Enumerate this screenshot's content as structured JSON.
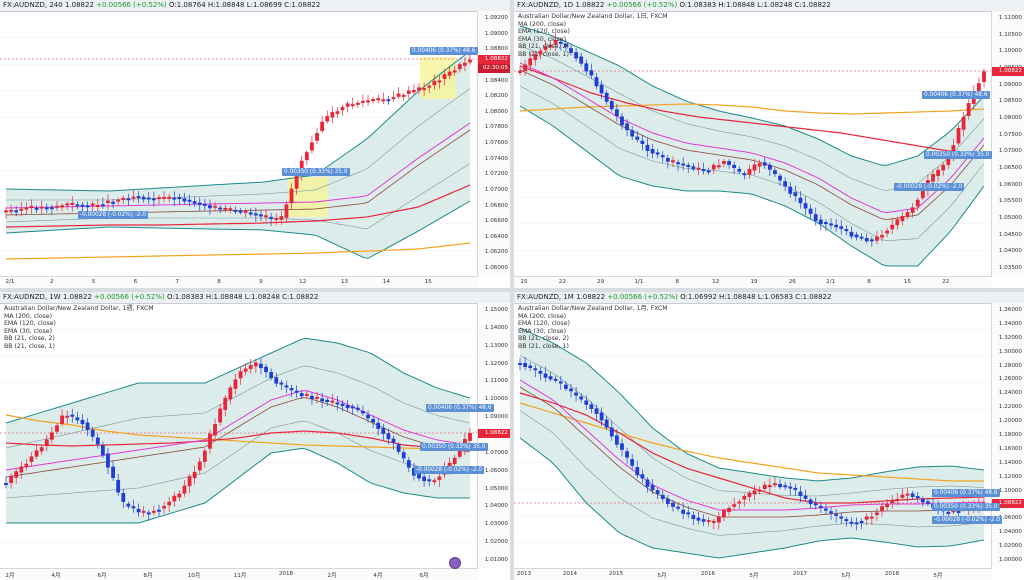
{
  "colors": {
    "up": "#e8263a",
    "down": "#1e3ed6",
    "ma200": "#f4a11d",
    "ema120": "#e8263a",
    "ema30": "#8b4a3a",
    "bb2": "#1e8b8b",
    "bb1": "#e23ad7",
    "fill": "#dcecea",
    "highlight": "#f8f59a",
    "price_label": "#e8263a"
  },
  "panels": [
    {
      "id": "h4",
      "title": {
        "symbol": "FX:AUDNZD, 240",
        "last": "1.08822",
        "change": "+0.00566 (+0.52%)",
        "ohlc": "O:1.08764 H:1.08848 L:1.08699 C:1.08822"
      },
      "legend": [],
      "price_label": "1.08822",
      "price_sublabel": "02:30:05",
      "y_ticks": [
        "1.09200",
        "1.09000",
        "1.08800",
        "1.08600",
        "1.08400",
        "1.08200",
        "1.08000",
        "1.07800",
        "1.07600",
        "1.07400",
        "1.07200",
        "1.07000",
        "1.06800",
        "1.06600",
        "1.06400",
        "1.06200",
        "1.06000"
      ],
      "x_ticks": [
        "2/1",
        "2",
        "5",
        "6",
        "7",
        "8",
        "9",
        "12",
        "13",
        "14",
        "15"
      ],
      "tags": [
        "0.00406 (0.37%) 48.6",
        "0.00350 (0.33%) 35.0",
        "-0.00028 (-0.02%) -2.0"
      ]
    },
    {
      "id": "d1",
      "title": {
        "symbol": "FX:AUDNZD, 1D",
        "last": "1.08822",
        "change": "+0.00566 (+0.52%)",
        "ohlc": "O:1.08383 H:1.08848 L:1.08248 C:1.08822"
      },
      "legend": [
        "Australian Dollar/New Zealand Dollar, 1日, FXCM",
        "MA (200, close)",
        "EMA (120, close)",
        "EMA (30, close)",
        "BB (21, close, 2)",
        "BB (21, close, 1)"
      ],
      "price_label": "1.08822",
      "price_sublabel": "",
      "y_ticks": [
        "1.11000",
        "1.10500",
        "1.10000",
        "1.09500",
        "1.09000",
        "1.08500",
        "1.08000",
        "1.07500",
        "1.07000",
        "1.06500",
        "1.06000",
        "1.05500",
        "1.05000",
        "1.04500",
        "1.04000",
        "1.03500"
      ],
      "x_ticks": [
        "15",
        "22",
        "29",
        "1/1",
        "8",
        "12",
        "19",
        "26",
        "2/1",
        "8",
        "15",
        "22"
      ],
      "tags": [
        "0.00406 (0.37%) 48.6",
        "0.00350 (0.33%) 35.0",
        "-0.00028 (-0.02%) -2.0"
      ]
    },
    {
      "id": "w1",
      "title": {
        "symbol": "FX:AUDNZD, 1W",
        "last": "1.08822",
        "change": "+0.00566 (+0.52%)",
        "ohlc": "O:1.08383 H:1.08848 L:1.08248 C:1.08822"
      },
      "legend": [
        "Australian Dollar/New Zealand Dollar, 1週, FXCM",
        "MA (200, close)",
        "EMA (120, close)",
        "EMA (30, close)",
        "BB (21, close, 2)",
        "BB (21, close, 1)"
      ],
      "price_label": "1.08822",
      "price_sublabel": "",
      "y_ticks": [
        "1.15000",
        "1.14000",
        "1.13000",
        "1.12000",
        "1.11000",
        "1.10000",
        "1.09000",
        "1.08000",
        "1.07000",
        "1.06000",
        "1.05000",
        "1.04000",
        "1.03000",
        "1.02000",
        "1.01000"
      ],
      "x_ticks": [
        "2月",
        "4月",
        "6月",
        "8月",
        "10月",
        "11月",
        "2018",
        "2月",
        "4月",
        "6月"
      ],
      "tags": [
        "0.00406 (0.37%) 48.6",
        "0.00350 (0.33%) 35.0",
        "-0.00028 (-0.02%) -2.0"
      ]
    },
    {
      "id": "mn",
      "title": {
        "symbol": "FX:AUDNZD, 1M",
        "last": "1.08822",
        "change": "+0.00566 (+0.52%)",
        "ohlc": "O:1.06992 H:1.08848 L:1.06583 C:1.08822"
      },
      "legend": [
        "Australian Dollar/New Zealand Dollar, 1月, FXCM",
        "MA (200, close)",
        "EMA (120, close)",
        "EMA (30, close)",
        "BB (21, close, 2)",
        "BB (21, close, 1)"
      ],
      "price_label": "1.08822",
      "price_sublabel": "",
      "y_ticks": [
        "1.36000",
        "1.34000",
        "1.32000",
        "1.30000",
        "1.28000",
        "1.26000",
        "1.24000",
        "1.22000",
        "1.20000",
        "1.18000",
        "1.16000",
        "1.14000",
        "1.12000",
        "1.10000",
        "1.08000",
        "1.06000",
        "1.04000",
        "1.02000",
        "1.00000"
      ],
      "x_ticks": [
        "2013",
        "2014",
        "2015",
        "5月",
        "2016",
        "5月",
        "2017",
        "5月",
        "2018",
        "5月"
      ],
      "tags": [
        "0.00406 (0.37%) 48.6",
        "0.00350 (0.33%) 35.0",
        "-0.00028 (-0.02%) -2.0"
      ]
    }
  ]
}
